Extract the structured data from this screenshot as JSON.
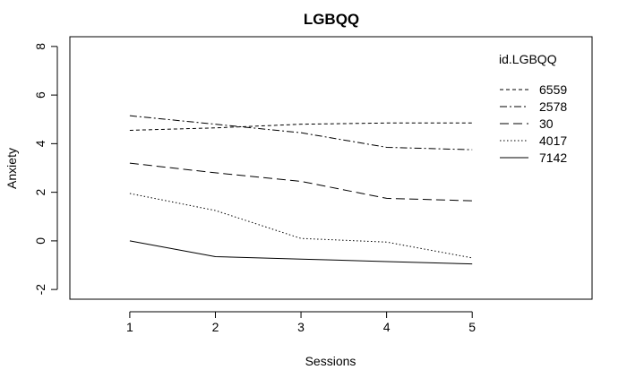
{
  "chart_data": {
    "type": "line",
    "title": "LGBQQ",
    "xlabel": "Sessions",
    "ylabel": "Anxiety",
    "x": [
      1,
      2,
      3,
      4,
      5
    ],
    "xlim": [
      0.3,
      6.4
    ],
    "ylim": [
      -2.4,
      8.4
    ],
    "xticks": [
      "1",
      "2",
      "3",
      "4",
      "5"
    ],
    "yticks": [
      -2,
      0,
      2,
      4,
      6,
      8
    ],
    "yticklabels": [
      "-2",
      "0",
      "2",
      "4",
      "6",
      "8"
    ],
    "grid": false,
    "legend": {
      "title": "id.LGBQQ",
      "position": "top-right"
    },
    "series": [
      {
        "name": "6559",
        "dash": "4,3",
        "values": [
          4.55,
          4.65,
          4.8,
          4.85,
          4.85
        ]
      },
      {
        "name": "2578",
        "dash": "8,3,2,3",
        "values": [
          5.15,
          4.8,
          4.45,
          3.85,
          3.75
        ]
      },
      {
        "name": "30",
        "dash": "10,5",
        "values": [
          3.2,
          2.8,
          2.45,
          1.75,
          1.65
        ]
      },
      {
        "name": "4017",
        "dash": "1.5,2.5",
        "values": [
          1.95,
          1.25,
          0.1,
          -0.05,
          -0.7
        ]
      },
      {
        "name": "7142",
        "dash": "",
        "values": [
          0.0,
          -0.65,
          -0.75,
          -0.85,
          -0.95
        ]
      }
    ]
  }
}
